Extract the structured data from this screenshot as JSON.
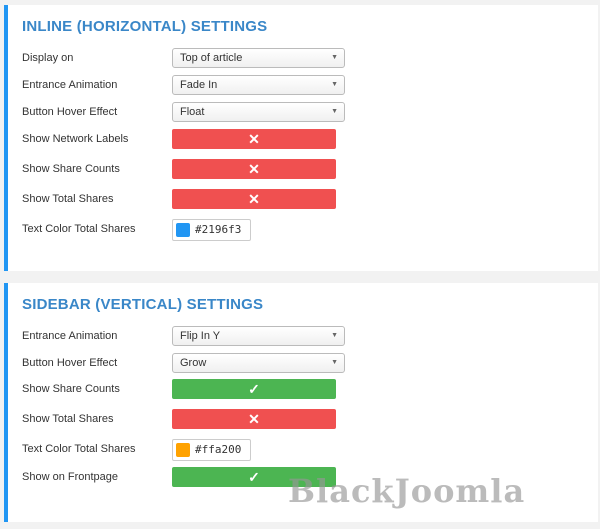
{
  "inline": {
    "title": "INLINE (HORIZONTAL) SETTINGS",
    "display_on": {
      "label": "Display on",
      "value": "Top of article"
    },
    "entrance": {
      "label": "Entrance Animation",
      "value": "Fade In"
    },
    "hover": {
      "label": "Button Hover Effect",
      "value": "Float"
    },
    "network_labels": {
      "label": "Show Network Labels",
      "state": "off"
    },
    "share_counts": {
      "label": "Show Share Counts",
      "state": "off"
    },
    "total_shares": {
      "label": "Show Total Shares",
      "state": "off"
    },
    "text_color": {
      "label": "Text Color Total Shares",
      "value": "#2196f3"
    }
  },
  "sidebar": {
    "title": "SIDEBAR (VERTICAL) SETTINGS",
    "entrance": {
      "label": "Entrance Animation",
      "value": "Flip In Y"
    },
    "hover": {
      "label": "Button Hover Effect",
      "value": "Grow"
    },
    "share_counts": {
      "label": "Show Share Counts",
      "state": "on"
    },
    "total_shares": {
      "label": "Show Total Shares",
      "state": "off"
    },
    "text_color": {
      "label": "Text Color Total Shares",
      "value": "#ffa200"
    },
    "frontpage": {
      "label": "Show on Frontpage",
      "state": "on"
    }
  },
  "icons": {
    "off": "✕",
    "on": "✓",
    "arrow": "▼"
  },
  "colors": {
    "accent": "#2196f3",
    "off": "#f05050",
    "on": "#4cb552"
  },
  "watermark": "BlackJoomla"
}
